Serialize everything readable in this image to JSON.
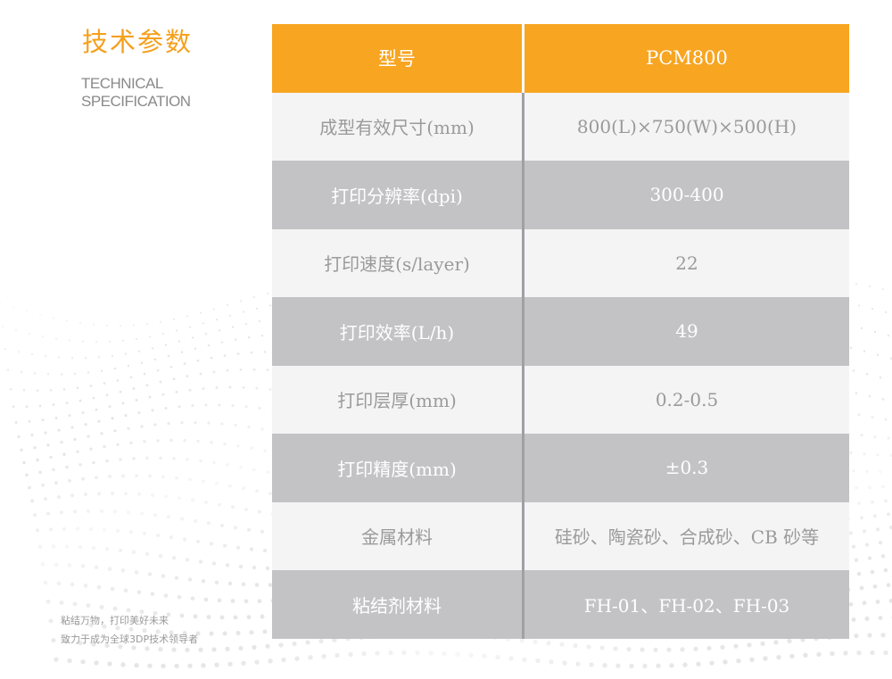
{
  "heading": {
    "cn": "技术参数",
    "en_line1": "TECHNICAL",
    "en_line2": "SPECIFICATION"
  },
  "slogan": {
    "line1": "粘结万物，打印美好未来",
    "line2": "致力于成为全球3DP技术领导者"
  },
  "colors": {
    "accent": "#f8a521",
    "light_row": "#f4f4f4",
    "dark_row": "#c3c3c5"
  },
  "table": {
    "header": {
      "label": "型号",
      "value": "PCM800"
    },
    "rows": [
      {
        "label": "成型有效尺寸(mm)",
        "value": "800(L)×750(W)×500(H)"
      },
      {
        "label": "打印分辨率(dpi)",
        "value": "300-400"
      },
      {
        "label": "打印速度(s/layer)",
        "value": "22"
      },
      {
        "label": "打印效率(L/h)",
        "value": "49"
      },
      {
        "label": "打印层厚(mm)",
        "value": "0.2-0.5"
      },
      {
        "label": "打印精度(mm)",
        "value": "±0.3"
      },
      {
        "label": "金属材料",
        "value": "硅砂、陶瓷砂、合成砂、CB 砂等"
      },
      {
        "label": "粘结剂材料",
        "value": "FH-01、FH-02、FH-03"
      }
    ]
  }
}
